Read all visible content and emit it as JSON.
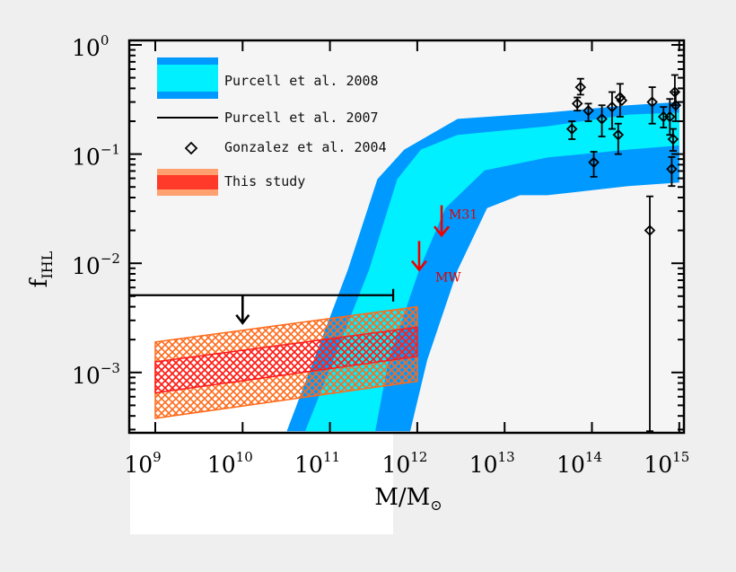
{
  "chart_data": {
    "type": "area",
    "xlabel": {
      "main": "M/M",
      "sub": "⊙"
    },
    "ylabel": {
      "main": "f",
      "sub": "IHL"
    },
    "xscale": "log",
    "yscale": "log",
    "xlim": [
      500000000.0,
      1100000000000000.0
    ],
    "ylim": [
      0.00029,
      1.1
    ],
    "grid": false,
    "legend_position": "top-left",
    "x_ticks": [
      {
        "value": 1000000000.0,
        "base": "10",
        "exp": "9"
      },
      {
        "value": 10000000000.0,
        "base": "10",
        "exp": "10"
      },
      {
        "value": 100000000000.0,
        "base": "10",
        "exp": "11"
      },
      {
        "value": 1000000000000.0,
        "base": "10",
        "exp": "12"
      },
      {
        "value": 10000000000000.0,
        "base": "10",
        "exp": "13"
      },
      {
        "value": 100000000000000.0,
        "base": "10",
        "exp": "14"
      },
      {
        "value": 1000000000000000.0,
        "base": "10",
        "exp": "15"
      }
    ],
    "y_ticks": [
      {
        "value": 1,
        "base": "10",
        "exp": "0"
      },
      {
        "value": 0.1,
        "base": "10",
        "exp": "−1"
      },
      {
        "value": 0.01,
        "base": "10",
        "exp": "−2"
      },
      {
        "value": 0.001,
        "base": "10",
        "exp": "−3"
      }
    ],
    "colors": {
      "outer_band": "#0099ff",
      "inner_band": "#00f0ff",
      "hatch_outer": "#ff6a1a",
      "hatch_inner": "#ff1a1a",
      "arrows": "#ee0000",
      "points": "#000000"
    },
    "series": [
      {
        "name": "Purcell et al. 2008",
        "kind": "band",
        "outer_upper": [
          [
            32000000000.0,
            0.00029
          ],
          [
            160000000000.0,
            0.0087
          ],
          [
            350000000000.0,
            0.059
          ],
          [
            710000000000.0,
            0.11
          ],
          [
            2900000000000.0,
            0.21
          ],
          [
            31000000000000.0,
            0.24
          ],
          [
            260000000000000.0,
            0.28
          ],
          [
            1000000000000000.0,
            0.3
          ]
        ],
        "inner_upper": [
          [
            52000000000.0,
            0.00029
          ],
          [
            280000000000.0,
            0.0087
          ],
          [
            590000000000.0,
            0.059
          ],
          [
            1100000000000.0,
            0.11
          ],
          [
            2900000000000.0,
            0.15
          ],
          [
            31000000000000.0,
            0.18
          ],
          [
            260000000000000.0,
            0.23
          ],
          [
            1000000000000000.0,
            0.24
          ]
        ],
        "inner_lower": [
          [
            330000000000.0,
            0.00029
          ],
          [
            470000000000.0,
            0.0013
          ],
          [
            1050000000000.0,
            0.0087
          ],
          [
            2100000000000.0,
            0.032
          ],
          [
            5900000000000.0,
            0.071
          ],
          [
            31000000000000.0,
            0.093
          ],
          [
            260000000000000.0,
            0.11
          ],
          [
            1000000000000000.0,
            0.12
          ]
        ],
        "outer_lower": [
          [
            830000000000.0,
            0.00029
          ],
          [
            1300000000000.0,
            0.0013
          ],
          [
            2900000000000.0,
            0.0087
          ],
          [
            6300000000000.0,
            0.032
          ],
          [
            15000000000000.0,
            0.042
          ],
          [
            31000000000000.0,
            0.042
          ],
          [
            260000000000000.0,
            0.051
          ],
          [
            1000000000000000.0,
            0.055
          ]
        ]
      },
      {
        "name": "Purcell et al. 2007",
        "kind": "upper-limit-line",
        "x_range": [
          500000000.0,
          530000000000.0
        ],
        "y": 0.0051,
        "arrow_x": 10000000000.0
      },
      {
        "name": "Gonzalez et al. 2004",
        "kind": "scatter-errorbars",
        "points": [
          {
            "x": 59000000000000.0,
            "y": 0.17,
            "lo": 0.137,
            "hi": 0.2
          },
          {
            "x": 68000000000000.0,
            "y": 0.29,
            "lo": 0.25,
            "hi": 0.33
          },
          {
            "x": 74000000000000.0,
            "y": 0.41,
            "lo": 0.35,
            "hi": 0.49
          },
          {
            "x": 91000000000000.0,
            "y": 0.25,
            "lo": 0.2,
            "hi": 0.29
          },
          {
            "x": 130000000000000.0,
            "y": 0.21,
            "lo": 0.145,
            "hi": 0.28
          },
          {
            "x": 105000000000000.0,
            "y": 0.084,
            "lo": 0.062,
            "hi": 0.105
          },
          {
            "x": 170000000000000.0,
            "y": 0.27,
            "lo": 0.17,
            "hi": 0.37
          },
          {
            "x": 200000000000000.0,
            "y": 0.15,
            "lo": 0.1,
            "hi": 0.19
          },
          {
            "x": 210000000000000.0,
            "y": 0.33,
            "lo": 0.22,
            "hi": 0.44
          },
          {
            "x": 220000000000000.0,
            "y": 0.31,
            "lo": 0.31,
            "hi": 0.31
          },
          {
            "x": 490000000000000.0,
            "y": 0.3,
            "lo": 0.19,
            "hi": 0.41
          },
          {
            "x": 460000000000000.0,
            "y": 0.02,
            "lo": 0.00029,
            "hi": 0.041
          },
          {
            "x": 660000000000000.0,
            "y": 0.22,
            "lo": 0.175,
            "hi": 0.27
          },
          {
            "x": 780000000000000.0,
            "y": 0.22,
            "lo": 0.15,
            "hi": 0.32
          },
          {
            "x": 890000000000000.0,
            "y": 0.37,
            "lo": 0.28,
            "hi": 0.53
          },
          {
            "x": 910000000000000.0,
            "y": 0.28,
            "lo": 0.2,
            "hi": 0.37
          },
          {
            "x": 850000000000000.0,
            "y": 0.137,
            "lo": 0.107,
            "hi": 0.17
          },
          {
            "x": 820000000000000.0,
            "y": 0.073,
            "lo": 0.051,
            "hi": 0.094
          }
        ]
      },
      {
        "name": "This study",
        "kind": "hatched-band",
        "x_range": [
          1000000000.0,
          1000000000000.0
        ],
        "outer_upper": [
          0.0019,
          0.004
        ],
        "outer_lower": [
          0.00038,
          0.00083
        ],
        "inner_upper": [
          0.00125,
          0.0026
        ],
        "inner_lower": [
          0.00065,
          0.0014
        ]
      }
    ],
    "annotations": [
      {
        "label": "M31",
        "x": 1900000000000.0,
        "y_from": 0.034,
        "y_to": 0.018
      },
      {
        "label": "MW",
        "x": 1050000000000.0,
        "y_from": 0.016,
        "y_to": 0.0087
      }
    ]
  }
}
